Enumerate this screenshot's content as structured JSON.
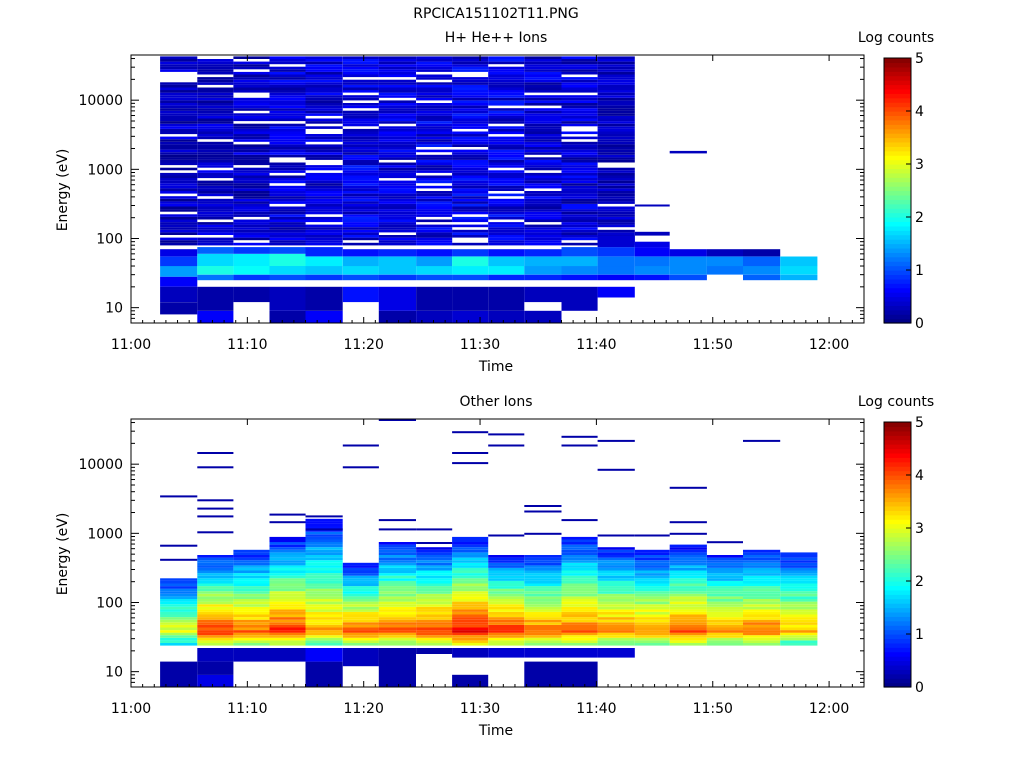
{
  "figure_title": "RPCICA151102T11.PNG",
  "chart_data": [
    {
      "type": "heatmap",
      "title": "H+ He++ Ions",
      "xlabel": "Time",
      "ylabel": "Energy (eV)",
      "x_ticks": [
        "11:00",
        "11:10",
        "11:20",
        "11:30",
        "11:40",
        "11:50",
        "12:00"
      ],
      "y_ticks": [
        "10",
        "100",
        "1000",
        "10000"
      ],
      "ylog": true,
      "ylim": [
        6,
        45000
      ],
      "colorbar": {
        "label": "Log counts",
        "ticks": [
          "0",
          "1",
          "2",
          "3",
          "4",
          "5"
        ],
        "range": [
          0,
          5
        ]
      },
      "time_bins": [
        "11:02-11:05",
        "11:05-11:08",
        "11:08-11:11",
        "11:11-11:14",
        "11:14-11:18",
        "11:18-11:21",
        "11:21-11:24",
        "11:24-11:27",
        "11:27-11:30",
        "11:30-11:34",
        "11:34-11:37",
        "11:37-11:40",
        "11:40-11:43",
        "11:43-11:46",
        "11:46-11:49",
        "11:49-11:53",
        "11:53-11:56",
        "11:56-11:59"
      ],
      "profiles": [
        {
          "dense_top": 45000,
          "noise": [
            0.05,
            0.6
          ],
          "core": [
            [
              20,
              28,
              0.6
            ],
            [
              28,
              40,
              1.4
            ],
            [
              40,
              55,
              0.9
            ],
            [
              55,
              70,
              0.5
            ]
          ],
          "low": [
            [
              8,
              12,
              0.2
            ],
            [
              12,
              20,
              0.3
            ]
          ]
        },
        {
          "dense_top": 45000,
          "noise": [
            0.1,
            0.6
          ],
          "core": [
            [
              25,
              30,
              1.2
            ],
            [
              30,
              40,
              2.0
            ],
            [
              40,
              60,
              1.7
            ],
            [
              60,
              75,
              1.1
            ]
          ],
          "low": [
            [
              6,
              9,
              0.6
            ],
            [
              9,
              20,
              0.2
            ]
          ]
        },
        {
          "dense_top": 45000,
          "noise": [
            0.1,
            0.6
          ],
          "core": [
            [
              25,
              30,
              0.9
            ],
            [
              30,
              40,
              1.9
            ],
            [
              40,
              60,
              1.8
            ],
            [
              60,
              75,
              0.9
            ]
          ],
          "low": [
            [
              12,
              20,
              0.2
            ]
          ]
        },
        {
          "dense_top": 45000,
          "noise": [
            0.15,
            0.7
          ],
          "core": [
            [
              25,
              30,
              1.0
            ],
            [
              30,
              40,
              1.7
            ],
            [
              40,
              60,
              2.0
            ],
            [
              60,
              75,
              1.0
            ]
          ],
          "low": [
            [
              6,
              9,
              0.2
            ],
            [
              9,
              20,
              0.3
            ]
          ]
        },
        {
          "dense_top": 45000,
          "noise": [
            0.15,
            0.7
          ],
          "core": [
            [
              25,
              30,
              0.9
            ],
            [
              30,
              40,
              1.6
            ],
            [
              40,
              55,
              1.8
            ],
            [
              55,
              75,
              0.8
            ]
          ],
          "low": [
            [
              6,
              9,
              0.6
            ],
            [
              9,
              20,
              0.2
            ]
          ]
        },
        {
          "dense_top": 45000,
          "noise": [
            0.2,
            0.8
          ],
          "core": [
            [
              25,
              30,
              1.0
            ],
            [
              30,
              40,
              1.7
            ],
            [
              40,
              55,
              1.5
            ],
            [
              55,
              70,
              0.7
            ]
          ],
          "low": [
            [
              12,
              20,
              0.7
            ]
          ]
        },
        {
          "dense_top": 45000,
          "noise": [
            0.2,
            0.7
          ],
          "core": [
            [
              25,
              30,
              0.9
            ],
            [
              30,
              40,
              1.6
            ],
            [
              40,
              55,
              1.6
            ],
            [
              55,
              70,
              0.8
            ]
          ],
          "low": [
            [
              6,
              9,
              0.2
            ],
            [
              9,
              20,
              0.5
            ]
          ]
        },
        {
          "dense_top": 45000,
          "noise": [
            0.2,
            0.8
          ],
          "core": [
            [
              25,
              30,
              1.0
            ],
            [
              30,
              40,
              1.7
            ],
            [
              40,
              55,
              1.4
            ],
            [
              55,
              70,
              0.7
            ]
          ],
          "low": [
            [
              6,
              9,
              0.3
            ],
            [
              9,
              20,
              0.2
            ]
          ]
        },
        {
          "dense_top": 45000,
          "noise": [
            0.2,
            0.8
          ],
          "core": [
            [
              25,
              30,
              1.0
            ],
            [
              30,
              40,
              1.8
            ],
            [
              40,
              55,
              2.0
            ],
            [
              55,
              70,
              0.9
            ]
          ],
          "low": [
            [
              6,
              9,
              0.4
            ],
            [
              9,
              20,
              0.2
            ]
          ]
        },
        {
          "dense_top": 45000,
          "noise": [
            0.2,
            0.8
          ],
          "core": [
            [
              25,
              30,
              0.8
            ],
            [
              30,
              40,
              1.8
            ],
            [
              40,
              55,
              1.6
            ],
            [
              55,
              70,
              0.7
            ]
          ],
          "low": [
            [
              6,
              9,
              0.3
            ],
            [
              9,
              20,
              0.2
            ]
          ]
        },
        {
          "dense_top": 45000,
          "noise": [
            0.15,
            0.7
          ],
          "core": [
            [
              25,
              30,
              0.8
            ],
            [
              30,
              40,
              1.4
            ],
            [
              40,
              55,
              1.5
            ],
            [
              55,
              70,
              0.8
            ]
          ],
          "low": [
            [
              6,
              9,
              0.3
            ],
            [
              12,
              20,
              0.3
            ]
          ]
        },
        {
          "dense_top": 45000,
          "noise": [
            0.1,
            0.7
          ],
          "core": [
            [
              25,
              30,
              0.7
            ],
            [
              30,
              40,
              1.3
            ],
            [
              40,
              55,
              1.5
            ],
            [
              55,
              75,
              1.0
            ]
          ],
          "low": [
            [
              9,
              20,
              0.3
            ]
          ]
        },
        {
          "dense_top": 45000,
          "noise": [
            0.1,
            0.5
          ],
          "core": [
            [
              25,
              30,
              0.6
            ],
            [
              30,
              40,
              1.2
            ],
            [
              40,
              55,
              1.2
            ],
            [
              55,
              75,
              0.9
            ],
            [
              75,
              110,
              0.4
            ]
          ],
          "low": [
            [
              14,
              20,
              0.6
            ]
          ]
        },
        {
          "dense_top": 0,
          "noise": [
            0,
            0
          ],
          "core": [
            [
              25,
              30,
              0.7
            ],
            [
              30,
              40,
              1.3
            ],
            [
              40,
              55,
              1.2
            ],
            [
              55,
              75,
              0.6
            ],
            [
              75,
              90,
              0.5
            ],
            [
              110,
              125,
              0.3
            ],
            [
              290,
              310,
              0.3
            ]
          ],
          "low": []
        },
        {
          "dense_top": 0,
          "noise": [
            0,
            0
          ],
          "core": [
            [
              25,
              30,
              1.0
            ],
            [
              30,
              40,
              1.3
            ],
            [
              40,
              55,
              1.3
            ],
            [
              55,
              70,
              0.5
            ],
            [
              1700,
              1850,
              0.3
            ]
          ],
          "low": []
        },
        {
          "dense_top": 0,
          "noise": [
            0,
            0
          ],
          "core": [
            [
              30,
              40,
              1.2
            ],
            [
              40,
              55,
              1.3
            ],
            [
              55,
              70,
              0.3
            ]
          ],
          "low": []
        },
        {
          "dense_top": 0,
          "noise": [
            0,
            0
          ],
          "core": [
            [
              25,
              30,
              1.1
            ],
            [
              30,
              40,
              1.3
            ],
            [
              40,
              55,
              1.1
            ],
            [
              55,
              70,
              0.2
            ]
          ],
          "low": []
        },
        {
          "dense_top": 0,
          "noise": [
            0,
            0
          ],
          "core": [
            [
              25,
              30,
              1.5
            ],
            [
              30,
              40,
              1.7
            ],
            [
              40,
              55,
              1.6
            ]
          ],
          "low": []
        }
      ]
    },
    {
      "type": "heatmap",
      "title": "Other Ions",
      "xlabel": "Time",
      "ylabel": "Energy (eV)",
      "x_ticks": [
        "11:00",
        "11:10",
        "11:20",
        "11:30",
        "11:40",
        "11:50",
        "12:00"
      ],
      "y_ticks": [
        "10",
        "100",
        "1000",
        "10000"
      ],
      "ylog": true,
      "ylim": [
        6,
        45000
      ],
      "colorbar": {
        "label": "Log counts",
        "ticks": [
          "0",
          "1",
          "2",
          "3",
          "4",
          "5"
        ],
        "range": [
          0,
          5
        ]
      },
      "time_bins": [
        "11:02-11:05",
        "11:05-11:08",
        "11:08-11:11",
        "11:11-11:14",
        "11:14-11:18",
        "11:18-11:21",
        "11:21-11:24",
        "11:24-11:27",
        "11:27-11:30",
        "11:30-11:34",
        "11:34-11:37",
        "11:37-11:40",
        "11:40-11:43",
        "11:43-11:46",
        "11:46-11:49",
        "11:49-11:53",
        "11:53-11:56",
        "11:56-11:59"
      ],
      "profiles": [
        {
          "top": 240,
          "peak": 3.1,
          "sparse": [
            3300,
            640,
            400
          ]
        },
        {
          "top": 520,
          "peak": 4.2,
          "sparse": [
            14000,
            8700,
            2900,
            2200,
            1700,
            1000
          ]
        },
        {
          "top": 600,
          "peak": 3.9,
          "sparse": []
        },
        {
          "top": 900,
          "peak": 4.2,
          "sparse": [
            1800,
            1400
          ]
        },
        {
          "top": 1700,
          "peak": 3.6,
          "sparse": [
            1700,
            1100
          ]
        },
        {
          "top": 400,
          "peak": 3.9,
          "sparse": [
            18000,
            8700
          ]
        },
        {
          "top": 800,
          "peak": 4.0,
          "sparse": [
            42000,
            1500,
            1100
          ]
        },
        {
          "top": 650,
          "peak": 4.1,
          "sparse": [
            1100,
            700
          ]
        },
        {
          "top": 900,
          "peak": 4.4,
          "sparse": [
            28000,
            14000,
            10000
          ]
        },
        {
          "top": 520,
          "peak": 4.2,
          "sparse": [
            26000,
            18000,
            900
          ]
        },
        {
          "top": 500,
          "peak": 3.9,
          "sparse": [
            2400,
            2000,
            950
          ]
        },
        {
          "top": 900,
          "peak": 3.9,
          "sparse": [
            24000,
            18000,
            1500
          ]
        },
        {
          "top": 650,
          "peak": 3.8,
          "sparse": [
            21000,
            8000,
            900
          ]
        },
        {
          "top": 600,
          "peak": 3.7,
          "sparse": [
            900
          ]
        },
        {
          "top": 700,
          "peak": 4.0,
          "sparse": [
            4400,
            1400,
            950
          ]
        },
        {
          "top": 500,
          "peak": 3.8,
          "sparse": [
            720
          ]
        },
        {
          "top": 600,
          "peak": 3.9,
          "sparse": [
            21000
          ]
        },
        {
          "top": 550,
          "peak": 3.5,
          "sparse": []
        }
      ],
      "low_blocks": [
        {
          "bin": 0,
          "ranges": [
            [
              6,
              14,
              0.2
            ]
          ]
        },
        {
          "bin": 1,
          "ranges": [
            [
              6,
              9,
              0.5
            ],
            [
              9,
              14,
              0.2
            ],
            [
              14,
              22,
              0.3
            ]
          ]
        },
        {
          "bin": 2,
          "ranges": [
            [
              14,
              22,
              0.3
            ]
          ]
        },
        {
          "bin": 3,
          "ranges": [
            [
              14,
              22,
              0.3
            ]
          ]
        },
        {
          "bin": 4,
          "ranges": [
            [
              6,
              14,
              0.2
            ],
            [
              14,
              22,
              0.6
            ]
          ]
        },
        {
          "bin": 5,
          "ranges": [
            [
              12,
              22,
              0.3
            ]
          ]
        },
        {
          "bin": 6,
          "ranges": [
            [
              6,
              22,
              0.2
            ]
          ]
        },
        {
          "bin": 7,
          "ranges": [
            [
              18,
              22,
              0.2
            ]
          ]
        },
        {
          "bin": 8,
          "ranges": [
            [
              6,
              9,
              0.2
            ],
            [
              16,
              22,
              0.3
            ]
          ]
        },
        {
          "bin": 9,
          "ranges": [
            [
              16,
              22,
              0.4
            ]
          ]
        },
        {
          "bin": 10,
          "ranges": [
            [
              6,
              14,
              0.2
            ],
            [
              16,
              22,
              0.4
            ]
          ]
        },
        {
          "bin": 11,
          "ranges": [
            [
              6,
              14,
              0.2
            ],
            [
              16,
              22,
              0.4
            ]
          ]
        },
        {
          "bin": 12,
          "ranges": [
            [
              16,
              22,
              0.4
            ]
          ]
        }
      ]
    }
  ]
}
